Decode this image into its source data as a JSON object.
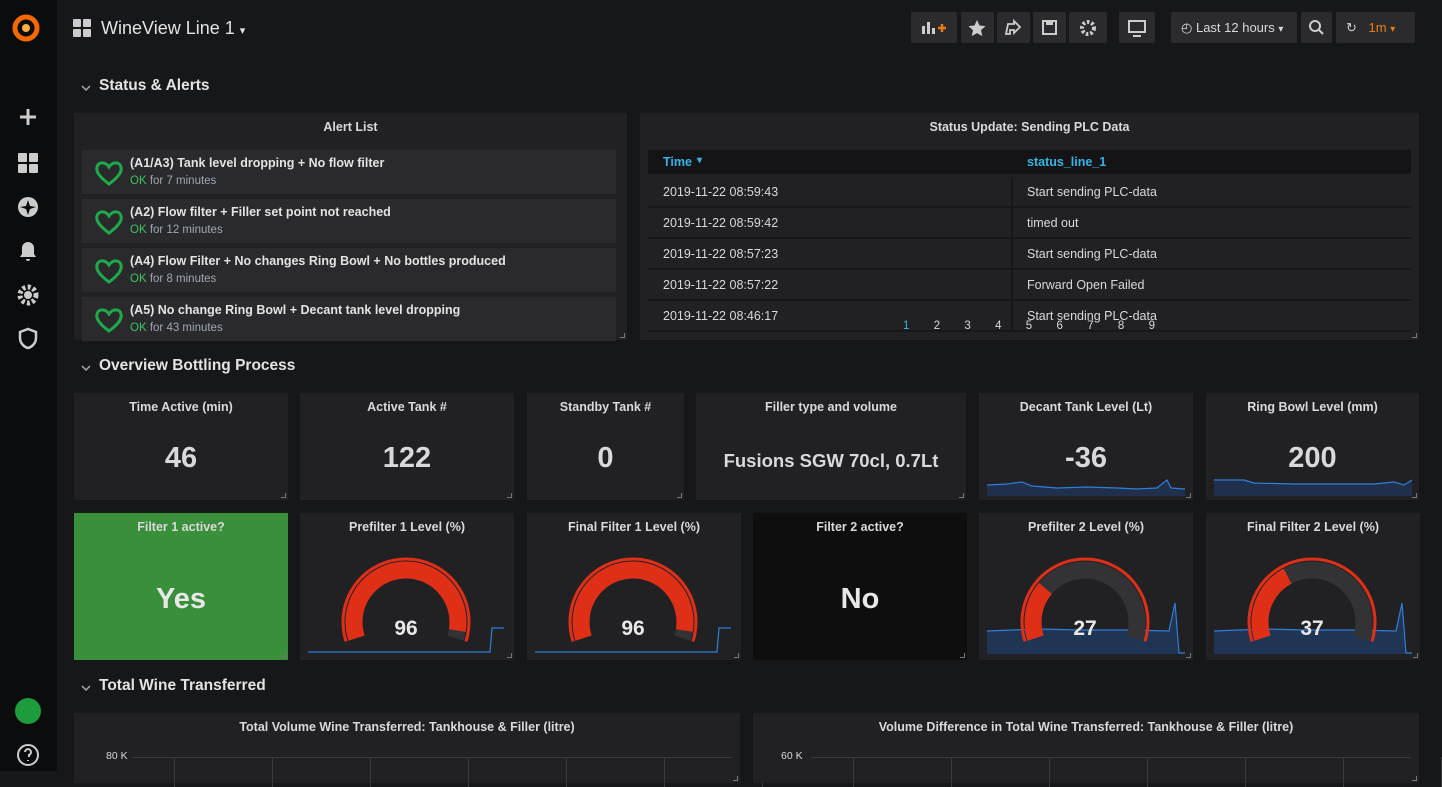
{
  "header": {
    "title": "WineView Line 1",
    "time_range": "Last 12 hours",
    "refresh": "1m"
  },
  "sections": [
    "Status & Alerts",
    "Overview Bottling Process",
    "Total Wine Transferred"
  ],
  "alert_list": {
    "title": "Alert List",
    "items": [
      {
        "name": "(A1/A3) Tank level dropping + No flow filter",
        "state": "OK",
        "duration": "for 7 minutes"
      },
      {
        "name": "(A2) Flow filter + Filler set point not reached",
        "state": "OK",
        "duration": "for 12 minutes"
      },
      {
        "name": "(A4) Flow Filter + No changes Ring Bowl + No bottles produced",
        "state": "OK",
        "duration": "for 8 minutes"
      },
      {
        "name": "(A5) No change Ring Bowl + Decant tank level dropping",
        "state": "OK",
        "duration": "for 43 minutes"
      }
    ]
  },
  "status_table": {
    "title": "Status Update: Sending PLC Data",
    "columns": [
      "Time",
      "status_line_1"
    ],
    "rows": [
      [
        "2019-11-22 08:59:43",
        "Start sending PLC-data"
      ],
      [
        "2019-11-22 08:59:42",
        "timed out"
      ],
      [
        "2019-11-22 08:57:23",
        "Start sending PLC-data"
      ],
      [
        "2019-11-22 08:57:22",
        "Forward Open Failed"
      ],
      [
        "2019-11-22 08:46:17",
        "Start sending PLC-data"
      ]
    ],
    "pages": [
      1,
      2,
      3,
      4,
      5,
      6,
      7,
      8,
      9
    ]
  },
  "stats": [
    {
      "title": "Time Active (min)",
      "value": 46
    },
    {
      "title": "Active Tank #",
      "value": 122
    },
    {
      "title": "Standby Tank #",
      "value": 0
    },
    {
      "title": "Filler type and volume",
      "value": "Fusions SGW 70cl, 0.7Lt"
    },
    {
      "title": "Decant Tank Level (Lt)",
      "value": -36
    },
    {
      "title": "Ring Bowl Level (mm)",
      "value": 200
    }
  ],
  "filter_states": [
    {
      "title": "Filter 1 active?",
      "value": "Yes"
    },
    {
      "title": "Filter 2 active?",
      "value": "No"
    }
  ],
  "gauges": [
    {
      "title": "Prefilter 1 Level (%)",
      "value": 96
    },
    {
      "title": "Final Filter 1 Level (%)",
      "value": 96
    },
    {
      "title": "Prefilter 2 Level (%)",
      "value": 27
    },
    {
      "title": "Final Filter 2 Level (%)",
      "value": 37
    }
  ],
  "bottom_panels": [
    {
      "title": "Total Volume Wine Transferred: Tankhouse & Filler (litre)",
      "top_tick": "80 K"
    },
    {
      "title": "Volume Difference in Total Wine Transferred: Tankhouse & Filler (litre)",
      "top_tick": "60 K"
    }
  ]
}
